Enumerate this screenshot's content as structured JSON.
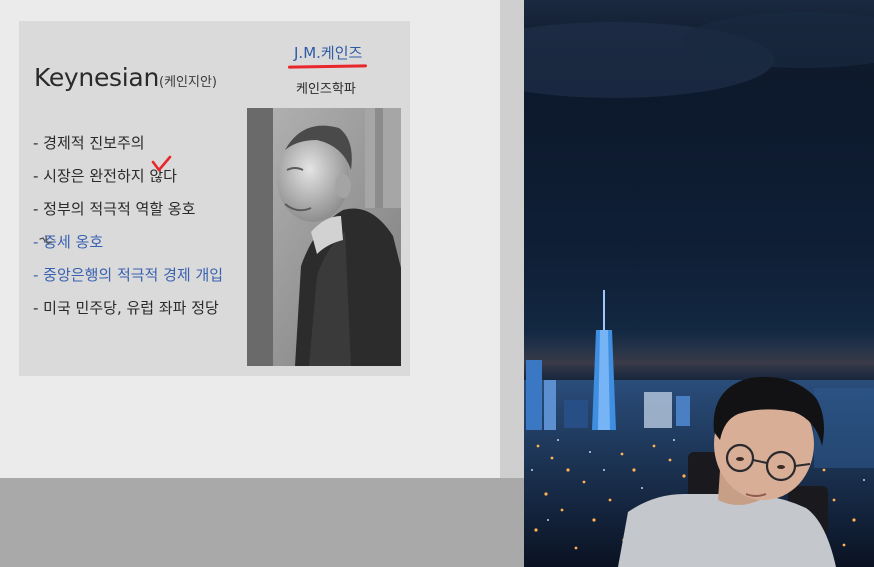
{
  "slide": {
    "title": "Keynesian",
    "title_paren": "(케인지안)",
    "person_name": "J.M.케인즈",
    "school": "케인즈학파",
    "bullets": [
      {
        "text": "- 경제적 진보주의",
        "style": "dark"
      },
      {
        "text": "- 시장은 완전하지 않다",
        "style": "dark"
      },
      {
        "text": "- 정부의 적극적 역할 옹호",
        "style": "dark"
      },
      {
        "text": "- 증세 옹호",
        "style": "blue"
      },
      {
        "text": "- 중앙은행의 적극적 경제 개입",
        "style": "blue"
      },
      {
        "text": "- 미국 민주당, 유럽 좌파 정당",
        "style": "dark"
      }
    ],
    "annotation_color": "#e8262b",
    "accent_color": "#3a62b0"
  }
}
